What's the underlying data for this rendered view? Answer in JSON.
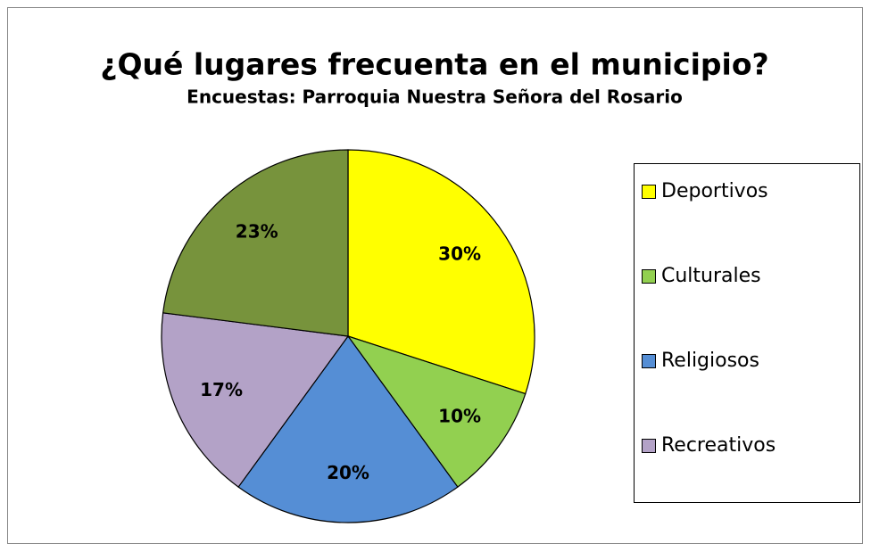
{
  "chart_data": {
    "type": "pie",
    "title": "¿Qué lugares frecuenta en el municipio?",
    "subtitle": "Encuestas: Parroquia Nuestra Señora del Rosario",
    "categories": [
      "Deportivos",
      "Culturales",
      "Religiosos",
      "Recreativos",
      null
    ],
    "values": [
      30,
      10,
      20,
      17,
      23
    ],
    "value_labels": [
      "30%",
      "10%",
      "20%",
      "17%",
      "23%"
    ],
    "colors": [
      "#ffff00",
      "#92d050",
      "#558ed5",
      "#b3a2c7",
      "#77933c"
    ],
    "legend": "right"
  }
}
